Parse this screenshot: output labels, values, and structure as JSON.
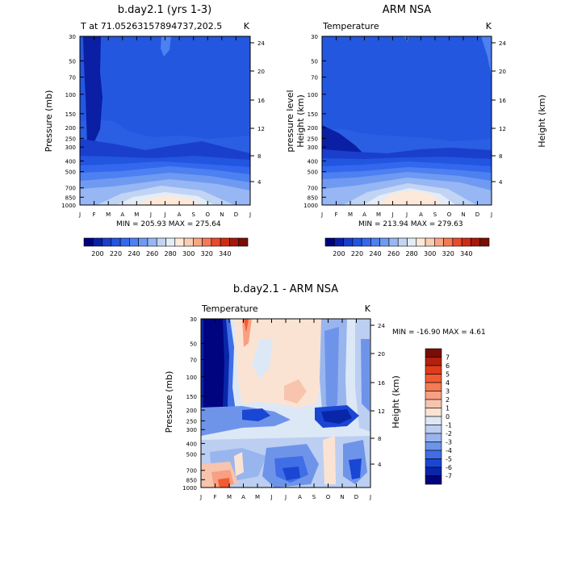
{
  "figure": {
    "panels": [
      {
        "title": "b.day2.1 (yrs 1-3)",
        "left_string": "T at 71.05263157894737,202.5",
        "right_string": "K",
        "y_label": "Pressure (mb)",
        "right_label": "Height (km)",
        "minmax_text": "MIN = 205.93 MAX = 275.64"
      },
      {
        "title": "ARM NSA",
        "left_string": "Temperature",
        "right_string": "K",
        "y_label": "pressure level",
        "right_label": "Height (km)",
        "minmax_text": "MIN = 213.94 MAX = 279.63"
      },
      {
        "title": "b.day2.1 - ARM NSA",
        "left_string": "Temperature",
        "right_string": "K",
        "y_label": "Pressure (mb)",
        "right_label": "Height (km)",
        "minmax_text": "MIN = -16.90 MAX =   4.61"
      }
    ]
  },
  "chart_data": [
    {
      "type": "heatmap",
      "title": "b.day2.1 (yrs 1-3)",
      "subtitle_left": "T at 71.05263157894737,202.5",
      "subtitle_right": "K",
      "ylabel": "Pressure (mb)",
      "ylabel_right": "Height (km)",
      "x": [
        "J",
        "F",
        "M",
        "A",
        "M",
        "J",
        "J",
        "A",
        "S",
        "O",
        "N",
        "D",
        "J"
      ],
      "y_ticks": [
        "30",
        "50",
        "70",
        "100",
        "150",
        "200",
        "250",
        "300",
        "400",
        "500",
        "700",
        "850",
        "1000"
      ],
      "y_ticks_right": [
        "24",
        "20",
        "16",
        "12",
        "8",
        "4"
      ],
      "y_scale": "log",
      "ylim": [
        1000,
        30
      ],
      "min": 205.93,
      "max": 275.64,
      "colorbar_ticks": [
        "200",
        "220",
        "240",
        "260",
        "280",
        "300",
        "320",
        "340"
      ],
      "colorbar_colors": [
        "#00007f",
        "#0a1fa3",
        "#1a3fcc",
        "#2255e0",
        "#3368ee",
        "#4d80f0",
        "#6f9af2",
        "#97b6f4",
        "#c2d4f4",
        "#e4ecf6",
        "#fde9d9",
        "#f9cdb4",
        "#f6a683",
        "#f37a55",
        "#e84a2b",
        "#cd2d12",
        "#a3190a",
        "#7a0d04"
      ]
    },
    {
      "type": "heatmap",
      "title": "ARM NSA",
      "subtitle_left": "Temperature",
      "subtitle_right": "K",
      "ylabel": "pressure level",
      "ylabel_right": "Height (km)",
      "x": [
        "J",
        "F",
        "M",
        "A",
        "M",
        "J",
        "J",
        "A",
        "S",
        "O",
        "N",
        "D",
        "J"
      ],
      "y_ticks": [
        "30",
        "50",
        "70",
        "100",
        "150",
        "200",
        "250",
        "300",
        "400",
        "500",
        "700",
        "850",
        "1000"
      ],
      "y_ticks_right": [
        "24",
        "20",
        "16",
        "12",
        "8",
        "4"
      ],
      "y_scale": "log",
      "ylim": [
        1000,
        30
      ],
      "min": 213.94,
      "max": 279.63,
      "colorbar_ticks": [
        "200",
        "220",
        "240",
        "260",
        "280",
        "300",
        "320",
        "340"
      ]
    },
    {
      "type": "heatmap",
      "title": "b.day2.1 - ARM NSA",
      "subtitle_left": "Temperature",
      "subtitle_right": "K",
      "ylabel": "Pressure (mb)",
      "ylabel_right": "Height (km)",
      "x": [
        "J",
        "F",
        "M",
        "A",
        "M",
        "J",
        "J",
        "A",
        "S",
        "O",
        "N",
        "D",
        "J"
      ],
      "y_ticks": [
        "30",
        "50",
        "70",
        "100",
        "150",
        "200",
        "250",
        "300",
        "400",
        "500",
        "700",
        "850",
        "1000"
      ],
      "y_ticks_right": [
        "24",
        "20",
        "16",
        "12",
        "8",
        "4"
      ],
      "y_scale": "log",
      "ylim": [
        1000,
        30
      ],
      "min": -16.9,
      "max": 4.61,
      "colorbar_labels": [
        "7",
        "6",
        "5",
        "4",
        "3",
        "2",
        "1",
        "0",
        "-1",
        "-2",
        "-3",
        "-4",
        "-5",
        "-6",
        "-7"
      ],
      "colorbar_colors": [
        "#7a0d04",
        "#b3210d",
        "#e03b1c",
        "#f25a32",
        "#f57a55",
        "#f7a083",
        "#f8c4ad",
        "#fbe3d3",
        "#dde8f6",
        "#bccff2",
        "#99b5ee",
        "#6e94ea",
        "#3f6ee6",
        "#1a46d4",
        "#0a26a8",
        "#00047f"
      ]
    }
  ]
}
